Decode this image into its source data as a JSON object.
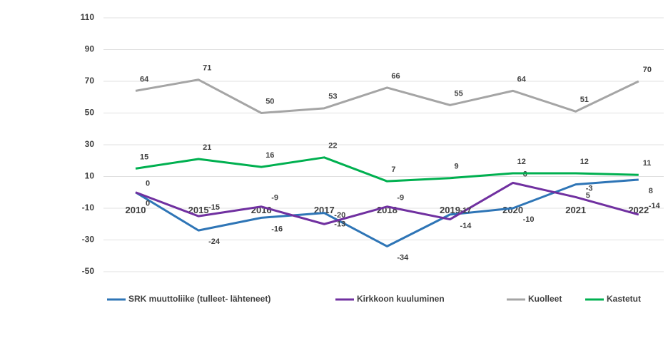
{
  "chart_data": {
    "type": "line",
    "categories": [
      "2010",
      "2015",
      "2016",
      "2017",
      "2018",
      "2019",
      "2020",
      "2021",
      "2022"
    ],
    "series": [
      {
        "name": "SRK muuttoliike (tulleet- lähteneet)",
        "color": "#2e75b6",
        "values": [
          0,
          -24,
          -16,
          -13,
          -34,
          -14,
          -10,
          5,
          8
        ]
      },
      {
        "name": "Kirkkoon kuuluminen",
        "color": "#7030a0",
        "values": [
          0,
          -15,
          -9,
          -20,
          -9,
          -17,
          6,
          -3,
          -14
        ]
      },
      {
        "name": "Kuolleet",
        "color": "#a5a5a5",
        "values": [
          64,
          71,
          50,
          53,
          66,
          55,
          64,
          51,
          70
        ]
      },
      {
        "name": "Kastetut",
        "color": "#00b050",
        "values": [
          15,
          21,
          16,
          22,
          7,
          9,
          12,
          12,
          11
        ]
      }
    ],
    "ylim": [
      -50,
      110
    ],
    "yticks": [
      -50,
      -30,
      -10,
      10,
      30,
      50,
      70,
      90,
      110
    ],
    "grid": true,
    "legend": "bottom"
  }
}
